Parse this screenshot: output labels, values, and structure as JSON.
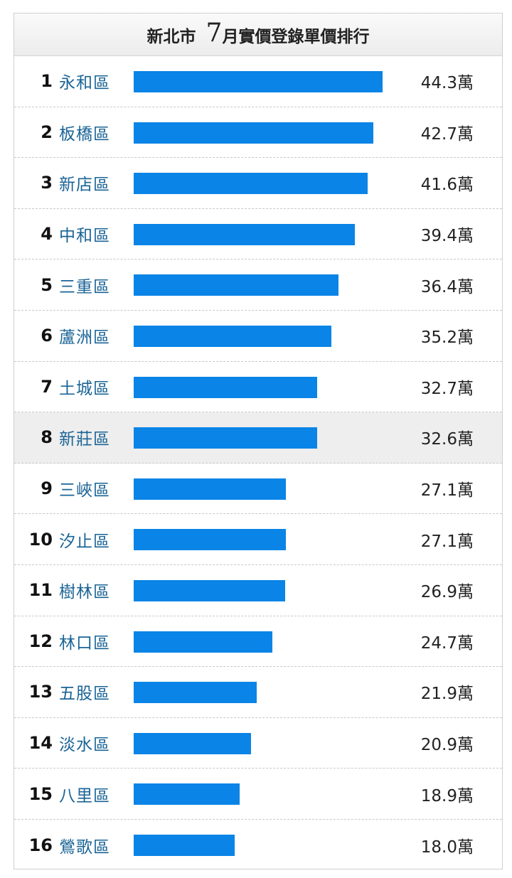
{
  "header": {
    "city": "新北市",
    "month": "7",
    "title_rest": "月實價登錄單價排行"
  },
  "chart_data": {
    "type": "bar",
    "orientation": "horizontal",
    "title": "新北市 7月實價登錄單價排行",
    "unit": "萬",
    "xlim": [
      0,
      48
    ],
    "highlight_rank": "8",
    "bar_color": "#0a84e6",
    "rows": [
      {
        "rank": "1",
        "name": "永和區",
        "value": 44.3,
        "label": "44.3萬"
      },
      {
        "rank": "2",
        "name": "板橋區",
        "value": 42.7,
        "label": "42.7萬"
      },
      {
        "rank": "3",
        "name": "新店區",
        "value": 41.6,
        "label": "41.6萬"
      },
      {
        "rank": "4",
        "name": "中和區",
        "value": 39.4,
        "label": "39.4萬"
      },
      {
        "rank": "5",
        "name": "三重區",
        "value": 36.4,
        "label": "36.4萬"
      },
      {
        "rank": "6",
        "name": "蘆洲區",
        "value": 35.2,
        "label": "35.2萬"
      },
      {
        "rank": "7",
        "name": "土城區",
        "value": 32.7,
        "label": "32.7萬"
      },
      {
        "rank": "8",
        "name": "新莊區",
        "value": 32.6,
        "label": "32.6萬"
      },
      {
        "rank": "9",
        "name": "三峽區",
        "value": 27.1,
        "label": "27.1萬"
      },
      {
        "rank": "10",
        "name": "汐止區",
        "value": 27.1,
        "label": "27.1萬"
      },
      {
        "rank": "11",
        "name": "樹林區",
        "value": 26.9,
        "label": "26.9萬"
      },
      {
        "rank": "12",
        "name": "林口區",
        "value": 24.7,
        "label": "24.7萬"
      },
      {
        "rank": "13",
        "name": "五股區",
        "value": 21.9,
        "label": "21.9萬"
      },
      {
        "rank": "14",
        "name": "淡水區",
        "value": 20.9,
        "label": "20.9萬"
      },
      {
        "rank": "15",
        "name": "八里區",
        "value": 18.9,
        "label": "18.9萬"
      },
      {
        "rank": "16",
        "name": "鶯歌區",
        "value": 18.0,
        "label": "18.0萬"
      }
    ]
  }
}
